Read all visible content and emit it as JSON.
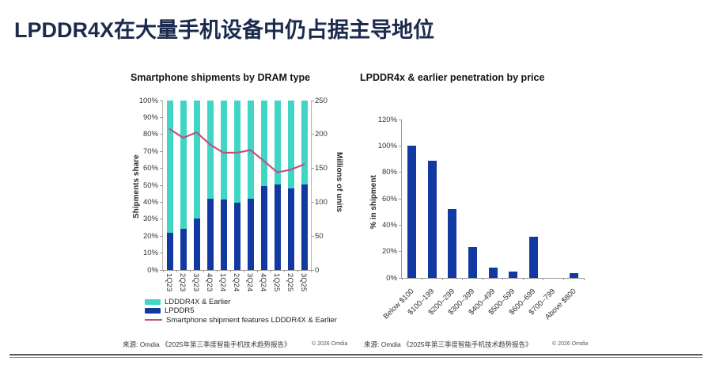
{
  "page_title": "LPDDR4X在大量手机设备中仍占据主导地位",
  "colors": {
    "title_navy": "#1b2b4e",
    "teal": "#40d5c4",
    "navy_bar": "#1238a2",
    "line_pink": "#c2527c"
  },
  "chart_data": [
    {
      "type": "stacked-bar-line",
      "title": "Smartphone shipments by DRAM type",
      "categories": [
        "1Q23",
        "2Q23",
        "3Q23",
        "4Q23",
        "1Q24",
        "2Q24",
        "3Q24",
        "4Q24",
        "1Q25",
        "2Q25",
        "3Q25"
      ],
      "series": [
        {
          "name": "LDDDR4X & Earlier",
          "kind": "bar-top",
          "color": "#40d5c4",
          "values": [
            78,
            75.5,
            69.5,
            58,
            58.5,
            60.5,
            58,
            50.5,
            49.5,
            52,
            49.5
          ]
        },
        {
          "name": "LPDDR5",
          "kind": "bar-bottom",
          "color": "#1238a2",
          "values": [
            22,
            24.5,
            30.5,
            42,
            41.5,
            39.5,
            42,
            49.5,
            50.5,
            48,
            50.5
          ]
        },
        {
          "name": "Smartphone shipment features LDDDR4X & Earlier",
          "kind": "line",
          "color": "#c2527c",
          "axis": "right",
          "values": [
            208,
            195,
            203,
            185,
            173,
            173,
            177,
            161,
            144,
            148,
            156
          ]
        }
      ],
      "ylabel_left": "Shipments share",
      "ylabel_right": "Millions of units",
      "yticks_left": [
        "100%",
        "90%",
        "80%",
        "70%",
        "60%",
        "50%",
        "40%",
        "30%",
        "20%",
        "10%",
        "0%"
      ],
      "yticks_right": [
        "250",
        "200",
        "150",
        "100",
        "50",
        "0"
      ],
      "ylim_left": [
        0,
        100
      ],
      "ylim_right": [
        0,
        250
      ],
      "grid": false,
      "legend_position": "bottom-left",
      "source": "来源: Omdia 《2025年第三季度智能手机技术趋势报告》",
      "copyright": "© 2026 Omdia"
    },
    {
      "type": "bar",
      "title": "LPDDR4x & earlier penetration by price",
      "categories": [
        "Below $100",
        "$100–199",
        "$200–299",
        "$300–399",
        "$400–499",
        "$500–599",
        "$600–699",
        "$700–799",
        "Above $800"
      ],
      "values": [
        100,
        89,
        52,
        23.5,
        8,
        5,
        31,
        0,
        3.5
      ],
      "bar_color": "#1238a2",
      "ylabel": "% in shipment",
      "yticks": [
        "120%",
        "100%",
        "80%",
        "60%",
        "40%",
        "20%",
        "0%"
      ],
      "ylim": [
        0,
        120
      ],
      "grid": false,
      "source": "来源: Omdia 《2025年第三季度智能手机技术趋势报告》",
      "copyright": "© 2026 Omdia"
    }
  ]
}
